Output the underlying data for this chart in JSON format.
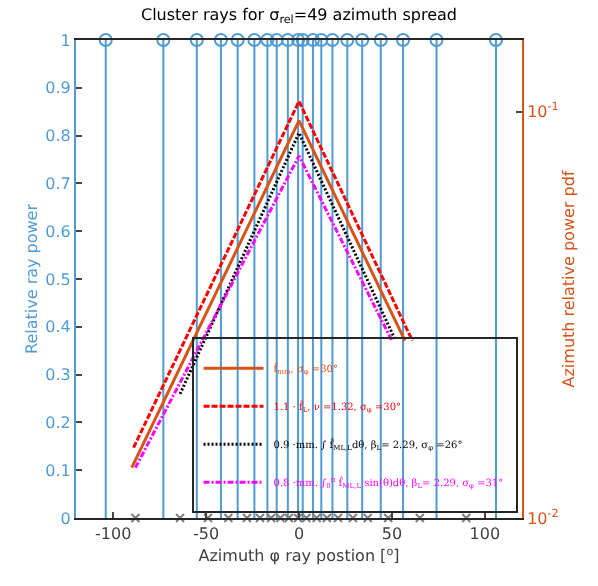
{
  "chart_data": {
    "type": "line",
    "title": "Cluster rays for σ$_{rel}$=49 azimuth spread",
    "xlabel": "Azimuth φ ray postion [$^{o}$]",
    "ylabel": "Relative ray power",
    "y2label": "Azimuth relative power pdf",
    "xlim": [
      -120,
      120
    ],
    "xticks": [
      -100,
      -50,
      0,
      50,
      100
    ],
    "ylim": [
      0,
      1
    ],
    "yticks": [
      0,
      0.1,
      0.2,
      0.3,
      0.4,
      0.5,
      0.6,
      0.7,
      0.8,
      0.9,
      1
    ],
    "y2lim": [
      0.01,
      0.15
    ],
    "y2ticks": [
      {
        "value": 0.01,
        "label": "10$^{-2}$"
      },
      {
        "value": 0.1,
        "label": "10$^{-1}$"
      }
    ],
    "log": "y2",
    "legend": "bottom right",
    "series": [
      {
        "type": "lollipop",
        "color": "#4f9bd4",
        "marker": "circle",
        "x": [
          -104,
          -73,
          -55,
          -42,
          -33,
          -24,
          -17,
          -12,
          -6,
          -0.5,
          2,
          7.5,
          12,
          18,
          26,
          34,
          44,
          56,
          74,
          106
        ],
        "values": [
          1,
          1,
          1,
          1,
          1,
          1,
          1,
          1,
          1,
          1,
          1,
          1,
          1,
          1,
          1,
          1,
          1,
          1,
          1,
          1
        ]
      },
      {
        "type": "scatter",
        "color": "#7f7f7f",
        "marker": "cross",
        "x": [
          -88,
          -64,
          -49,
          -38,
          -28,
          -21,
          -15,
          -10,
          -5.5,
          -0.5,
          4,
          9.5,
          15,
          21,
          29,
          37,
          48,
          65,
          90
        ],
        "values": [
          0,
          0,
          0,
          0,
          0,
          0,
          0,
          0,
          0,
          0,
          0,
          0,
          0,
          0,
          0,
          0,
          0,
          0,
          0
        ]
      },
      {
        "axis": "y2",
        "name": "f̂$_{mm}$, σ$_{φ}$ =30°",
        "color": "#d95319",
        "line_style": "solid",
        "x": [
          -90,
          0,
          57
        ],
        "values": [
          0.0133,
          0.095,
          0.0273
        ]
      },
      {
        "axis": "y2",
        "name": "1.1 · f̂$_{L}$, ν =1.32, σ$_{φ}$ =30°",
        "color": "#ff0000",
        "line_style": "dashed",
        "x": [
          -89,
          0,
          61
        ],
        "values": [
          0.0149,
          0.106,
          0.0273
        ]
      },
      {
        "axis": "y2",
        "name": "0.9 ·mm. ∫ f̂$_{ML,L}$dθ, β$_{L}$= 2.29, σ$_{φ}$ =26°",
        "color": "#000000",
        "line_style": "dotted",
        "x": [
          -64,
          0,
          52
        ],
        "values": [
          0.0202,
          0.0886,
          0.0273
        ]
      },
      {
        "axis": "y2",
        "name": "0.8 ·mm. ∫$_{0}$$^{π}$ f̂$_{ML,L}$ sin(θ)dθ, β$_{L}$= 2.29, σ$_{φ}$ =31°",
        "color": "#ff00ff",
        "line_style": "dashdot",
        "x": [
          -88,
          0,
          50
        ],
        "values": [
          0.0133,
          0.0778,
          0.0273
        ]
      }
    ]
  }
}
